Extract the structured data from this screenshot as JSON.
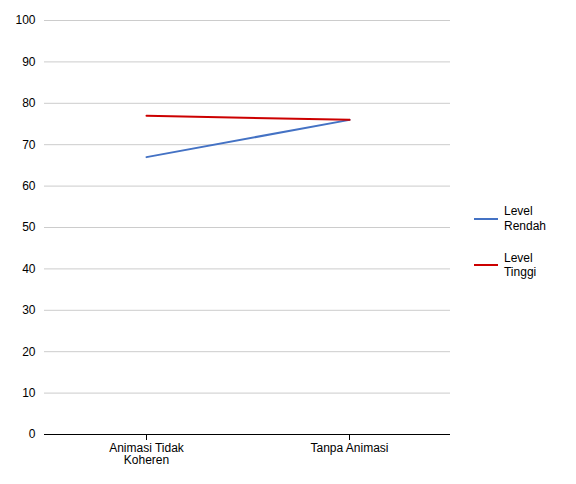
{
  "chart_data": {
    "type": "line",
    "categories": [
      "Animasi Tidak\nKoheren",
      "Tanpa Animasi"
    ],
    "series": [
      {
        "name": "Level\nRendah",
        "color": "#4472C4",
        "values": [
          67,
          76
        ]
      },
      {
        "name": "Level Tinggi",
        "color": "#CC0000",
        "values": [
          77,
          76
        ]
      }
    ],
    "ylim": [
      0,
      100
    ],
    "yticks": [
      0,
      10,
      20,
      30,
      40,
      50,
      60,
      70,
      80,
      90,
      100
    ],
    "grid": true,
    "legend": "right"
  }
}
